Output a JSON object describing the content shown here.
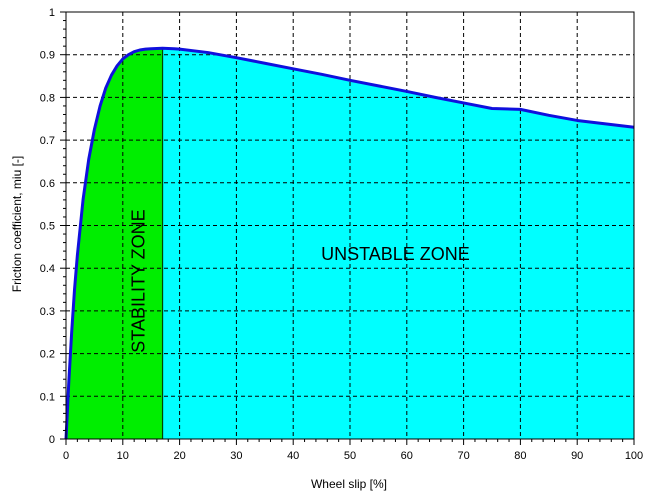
{
  "chart_data": {
    "type": "area",
    "title": "",
    "xlabel": "Wheel slip [%]",
    "ylabel": "Friction coefficient, miu [-]",
    "xlim": [
      0,
      100
    ],
    "ylim": [
      0,
      1
    ],
    "x_ticks": [
      "0",
      "10",
      "20",
      "30",
      "40",
      "50",
      "60",
      "70",
      "80",
      "90",
      "100"
    ],
    "y_ticks": [
      "0",
      "0.1",
      "0.2",
      "0.3",
      "0.4",
      "0.5",
      "0.6",
      "0.7",
      "0.8",
      "0.9",
      "1"
    ],
    "grid": true,
    "grid_style": "dashed",
    "x_minor_ticks_per_interval": 5,
    "y_minor_ticks_per_interval": 5,
    "series": [
      {
        "x": [
          0,
          0.5,
          1,
          1.5,
          2,
          3,
          4,
          5,
          6,
          7,
          8,
          9,
          10,
          11,
          12,
          13,
          14,
          15,
          16,
          17,
          18,
          19,
          20,
          25,
          30,
          35,
          40,
          45,
          50,
          55,
          60,
          65,
          70,
          75,
          80,
          85,
          90,
          95,
          100
        ],
        "y": [
          0,
          0.135,
          0.25,
          0.35,
          0.43,
          0.56,
          0.655,
          0.725,
          0.78,
          0.822,
          0.852,
          0.874,
          0.89,
          0.9,
          0.907,
          0.911,
          0.913,
          0.914,
          0.9145,
          0.915,
          0.9145,
          0.914,
          0.913,
          0.905,
          0.893,
          0.88,
          0.867,
          0.854,
          0.84,
          0.827,
          0.814,
          0.8,
          0.787,
          0.774,
          0.772,
          0.758,
          0.746,
          0.738,
          0.73
        ],
        "line_color": "#1010dd"
      }
    ],
    "regions": [
      {
        "label": "STABILITY ZONE",
        "x_from": 0,
        "x_to": 17,
        "color": "#00ee00",
        "label_rotation": -90,
        "label_x": 13,
        "label_y": 0.37
      },
      {
        "label": "UNSTABLE ZONE",
        "x_from": 17,
        "x_to": 100,
        "color": "#00ffff",
        "label_rotation": 0,
        "label_x": 58,
        "label_y": 0.43
      }
    ],
    "colors": {
      "stable": "#00ee00",
      "unstable": "#00ffff",
      "curve": "#1010dd",
      "axis": "#000000",
      "grid": "#000000",
      "divider": "#004400"
    }
  }
}
